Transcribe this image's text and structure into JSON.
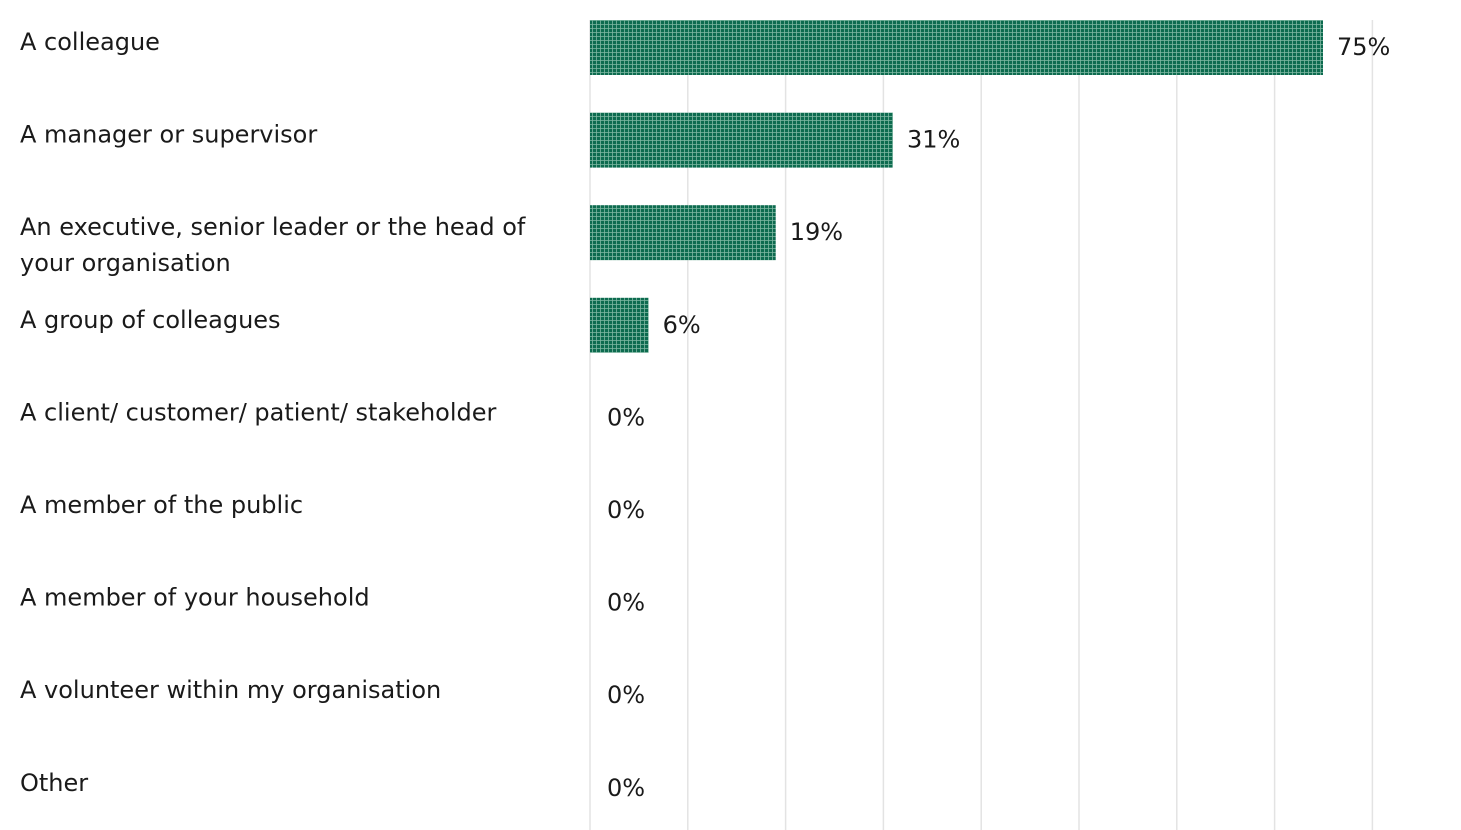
{
  "chart_data": {
    "type": "bar",
    "orientation": "horizontal",
    "categories": [
      "A colleague",
      "A manager or supervisor",
      "An executive, senior leader or the head of your organisation",
      "A group of colleagues",
      "A client/ customer/ patient/ stakeholder",
      "A member of the public",
      "A member of your household",
      "A volunteer within my organisation",
      "Other"
    ],
    "values": [
      75,
      31,
      19,
      6,
      0,
      0,
      0,
      0,
      0
    ],
    "value_labels": [
      "75%",
      "31%",
      "19%",
      "6%",
      "0%",
      "0%",
      "0%",
      "0%",
      "0%"
    ],
    "title": "",
    "xlabel": "",
    "ylabel": "",
    "xlim": [
      0,
      80
    ],
    "grid": true,
    "legend": "none",
    "bar_color": "#0d6b4f",
    "bar_pattern": "grid-hatch"
  }
}
